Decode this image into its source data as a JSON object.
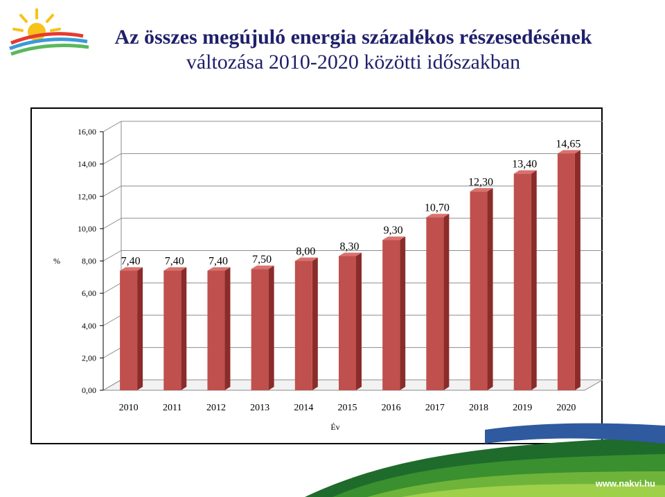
{
  "title": {
    "line1": "Az összes megújuló energia százalékos részesedésének",
    "line2": "változása 2010-2020 közötti időszakban"
  },
  "footer": {
    "url": "www.nakvi.hu"
  },
  "colors": {
    "bar": "#c0504d",
    "bar_side": "#8b2c2a",
    "bar_top": "#d9726f",
    "title": "#1f1f6b"
  },
  "chart_data": {
    "type": "bar",
    "categories": [
      "2010",
      "2011",
      "2012",
      "2013",
      "2014",
      "2015",
      "2016",
      "2017",
      "2018",
      "2019",
      "2020"
    ],
    "values": [
      7.4,
      7.4,
      7.4,
      7.5,
      8.0,
      8.3,
      9.3,
      10.7,
      12.3,
      13.4,
      14.65
    ],
    "value_labels": [
      "7,40",
      "7,40",
      "7,40",
      "7,50",
      "8,00",
      "8,30",
      "9,30",
      "10,70",
      "12,30",
      "13,40",
      "14,65"
    ],
    "xlabel": "Év",
    "ylabel": "%",
    "ylim": [
      0,
      16
    ],
    "yticks": [
      0,
      2,
      4,
      6,
      8,
      10,
      12,
      14,
      16
    ],
    "ytick_labels": [
      "0,00",
      "2,00",
      "4,00",
      "6,00",
      "8,00",
      "10,00",
      "12,00",
      "14,00",
      "16,00"
    ],
    "grid": true,
    "legend": "none"
  }
}
